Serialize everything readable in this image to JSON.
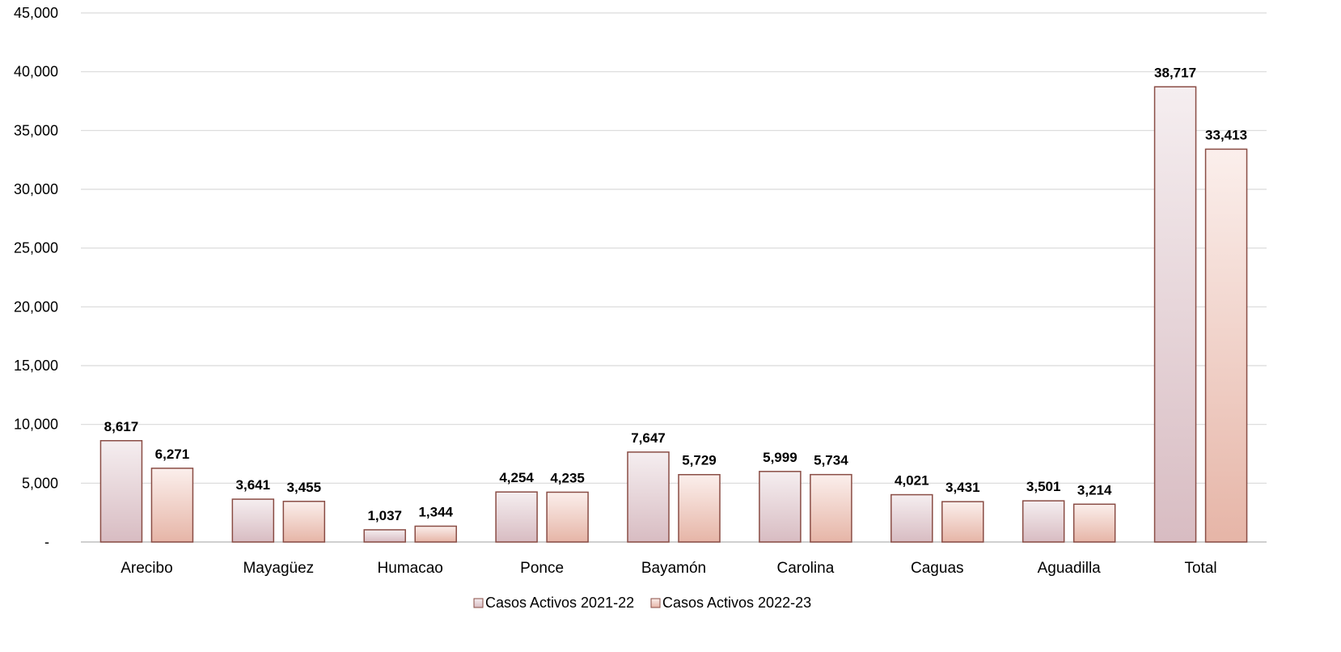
{
  "chart_data": {
    "type": "bar",
    "categories": [
      "Arecibo",
      "Mayagüez",
      "Humacao",
      "Ponce",
      "Bayamón",
      "Carolina",
      "Caguas",
      "Aguadilla",
      "Total"
    ],
    "series": [
      {
        "name": "Casos Activos 2021-22",
        "values": [
          8617,
          3641,
          1037,
          4254,
          7647,
          5999,
          4021,
          3501,
          38717
        ],
        "labels": [
          "8,617",
          "3,641",
          "1,037",
          "4,254",
          "7,647",
          "5,999",
          "4,021",
          "3,501",
          "38,717"
        ],
        "color_top": "#f5eef0",
        "color_bottom": "#d8bcc2",
        "edge": "#8a4d45"
      },
      {
        "name": "Casos Activos 2022-23",
        "values": [
          6271,
          3455,
          1344,
          4235,
          5729,
          5734,
          3431,
          3214,
          33413
        ],
        "labels": [
          "6,271",
          "3,455",
          "1,344",
          "4,235",
          "5,729",
          "5,734",
          "3,431",
          "3,214",
          "33,413"
        ],
        "color_top": "#fbefec",
        "color_bottom": "#e6b5a7",
        "edge": "#8a4d45"
      }
    ],
    "ylim": [
      0,
      45000
    ],
    "yticks": [
      0,
      5000,
      10000,
      15000,
      20000,
      25000,
      30000,
      35000,
      40000,
      45000
    ],
    "ytick_labels": [
      "-",
      "5,000",
      "10,000",
      "15,000",
      "20,000",
      "25,000",
      "30,000",
      "35,000",
      "40,000",
      "45,000"
    ],
    "grid": true,
    "legend_position": "bottom",
    "gridline_color": "#d9d9d9",
    "axis_color": "#bfbfbf"
  }
}
